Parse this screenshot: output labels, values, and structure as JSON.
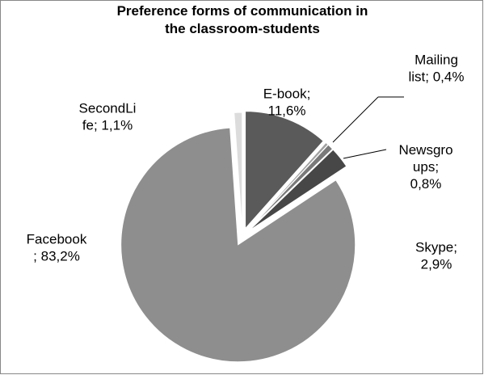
{
  "chart_data": {
    "type": "pie",
    "title": "Preference forms of communication in\nthe classroom-students",
    "values": [
      11.6,
      0.4,
      0.8,
      2.9,
      83.2,
      1.1
    ],
    "value_labels": [
      "E-book;\n11,6%",
      "Mailing\nlist; 0,4%",
      "Newsgro\nups;\n0,8%",
      "Skype;\n2,9%",
      "Facebook\n; 83,2%",
      "SecondLi\nfe; 1,1%"
    ],
    "colors": [
      "#5a5a5a",
      "#a0a0a0",
      "#7a7a7a",
      "#474747",
      "#8e8e8e",
      "#dcdcdc"
    ]
  }
}
